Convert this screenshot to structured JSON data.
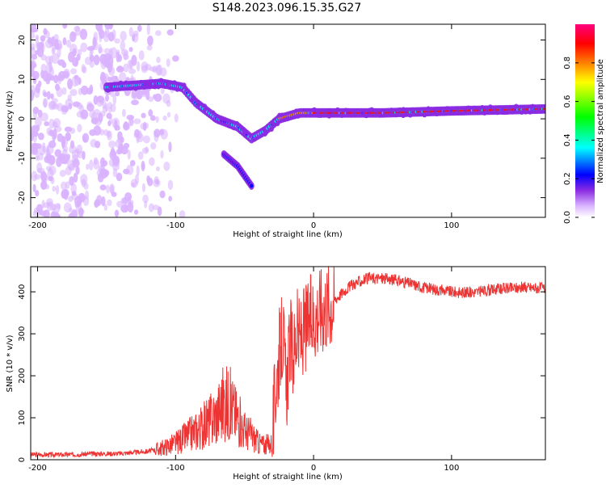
{
  "title": "S148.2023.096.15.35.G27",
  "chart_data": [
    {
      "type": "heatmap",
      "xlabel": "Height of straight line (km)",
      "ylabel": "Frequency (Hz)",
      "xlim": [
        -205,
        168
      ],
      "ylim": [
        -25,
        24
      ],
      "xticks": [
        -200,
        -100,
        0,
        100
      ],
      "yticks": [
        -20,
        -10,
        0,
        10,
        20
      ],
      "colorbar": {
        "label": "Normalized spectral amplitude",
        "range": [
          0,
          1
        ],
        "ticks": [
          0.0,
          0.2,
          0.4,
          0.6,
          0.8
        ],
        "colors": [
          "#ffffff",
          "#d9b3ff",
          "#8a2be2",
          "#0000ff",
          "#00ffff",
          "#00ff00",
          "#ffff00",
          "#ff8000",
          "#ff0000",
          "#ff0080"
        ]
      },
      "ridge": [
        {
          "x": -150,
          "y": 8
        },
        {
          "x": -130,
          "y": 8.5
        },
        {
          "x": -110,
          "y": 9
        },
        {
          "x": -95,
          "y": 8
        },
        {
          "x": -85,
          "y": 4
        },
        {
          "x": -70,
          "y": 0
        },
        {
          "x": -55,
          "y": -2
        },
        {
          "x": -45,
          "y": -5
        },
        {
          "x": -35,
          "y": -3
        },
        {
          "x": -25,
          "y": 0
        },
        {
          "x": -10,
          "y": 1.5
        },
        {
          "x": 0,
          "y": 1.5
        },
        {
          "x": 50,
          "y": 1.5
        },
        {
          "x": 100,
          "y": 2
        },
        {
          "x": 168,
          "y": 2.5
        }
      ],
      "lower_branch": [
        {
          "x": -65,
          "y": -9
        },
        {
          "x": -55,
          "y": -12
        },
        {
          "x": -45,
          "y": -17
        }
      ]
    },
    {
      "type": "line",
      "xlabel": "Height of straight line (km)",
      "ylabel": "SNR (10 * v/v)",
      "xlim": [
        -205,
        168
      ],
      "ylim": [
        0,
        460
      ],
      "xticks": [
        -200,
        -100,
        0,
        100
      ],
      "yticks": [
        0,
        100,
        200,
        300,
        400
      ],
      "series": [
        {
          "color": "#ee3333",
          "x": [
            -205,
            -180,
            -160,
            -140,
            -120,
            -110,
            -100,
            -90,
            -80,
            -70,
            -65,
            -60,
            -55,
            -50,
            -45,
            -40,
            -35,
            -30,
            -28,
            -25,
            -22,
            -20,
            -17,
            -15,
            -12,
            -10,
            -8,
            -5,
            0,
            5,
            10,
            15,
            20,
            25,
            30,
            40,
            50,
            60,
            70,
            80,
            90,
            100,
            110,
            120,
            130,
            140,
            150,
            160,
            168
          ],
          "y": [
            12,
            12,
            14,
            15,
            20,
            28,
            40,
            60,
            80,
            110,
            140,
            130,
            100,
            70,
            60,
            40,
            35,
            40,
            150,
            250,
            300,
            160,
            280,
            250,
            300,
            280,
            300,
            320,
            340,
            360,
            370,
            380,
            395,
            410,
            420,
            432,
            432,
            428,
            420,
            410,
            405,
            400,
            398,
            400,
            405,
            408,
            410,
            410,
            408
          ]
        }
      ]
    }
  ]
}
